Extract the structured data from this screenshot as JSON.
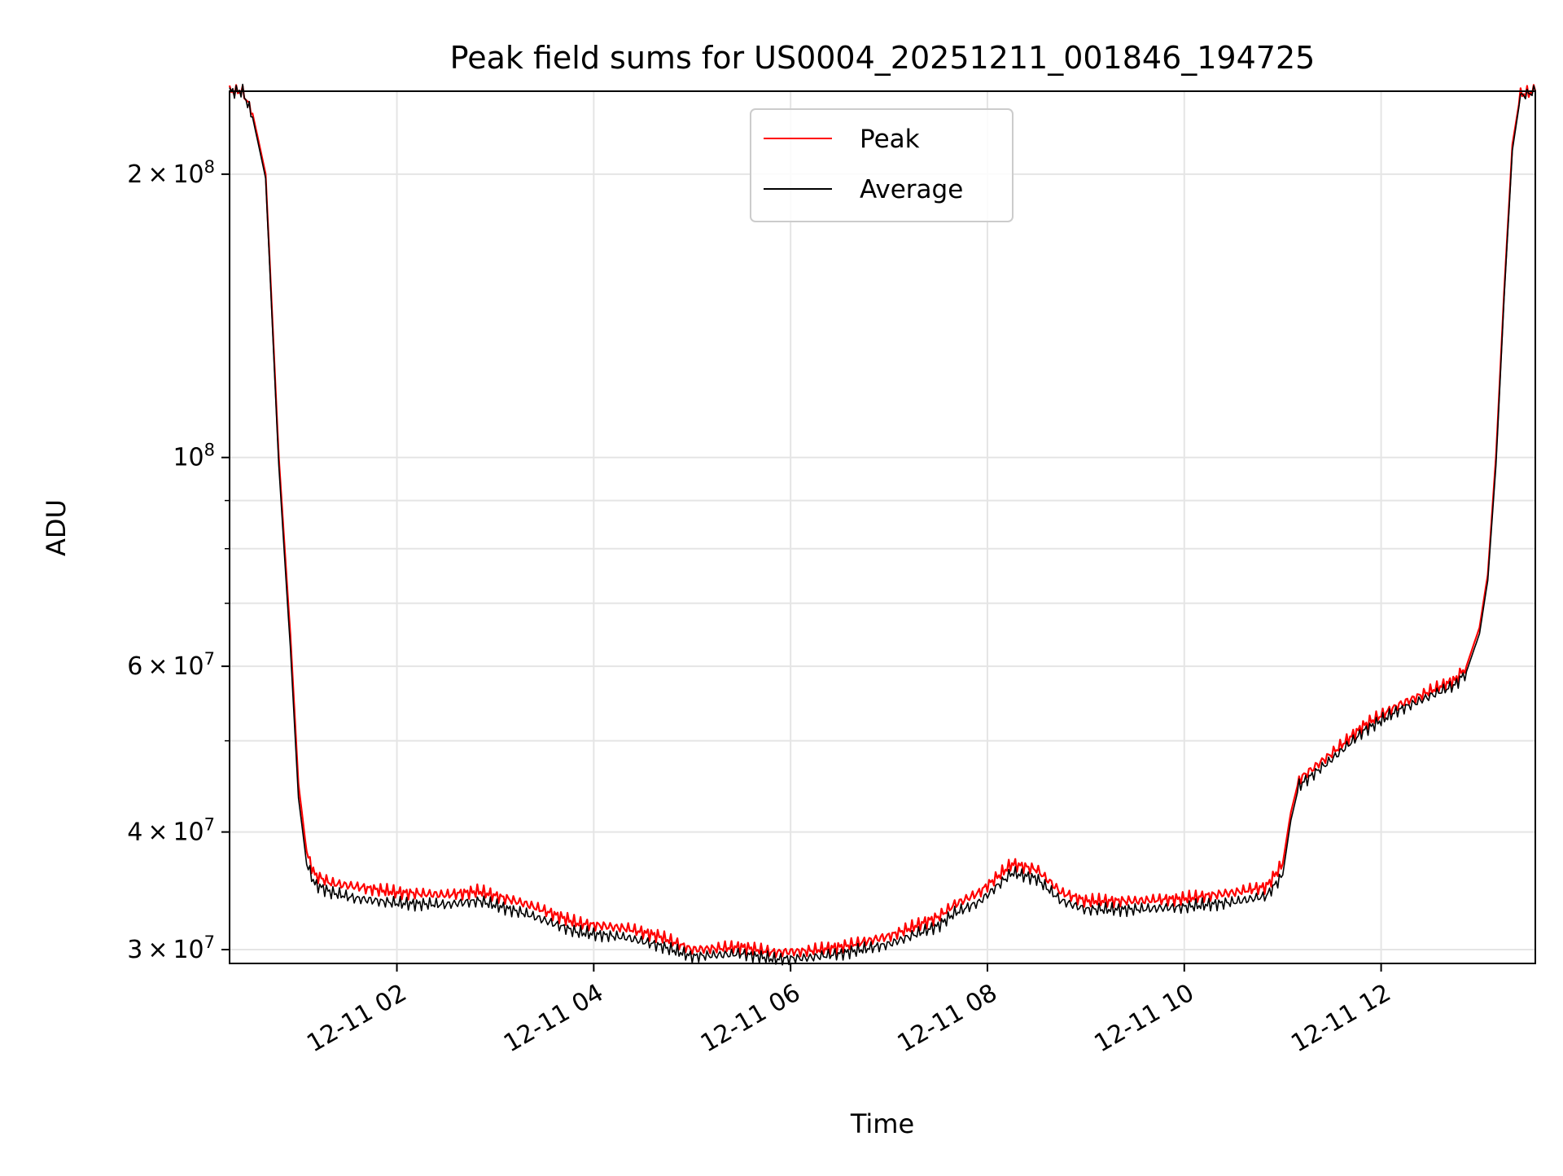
{
  "chart_data": {
    "type": "line",
    "title": "Peak field sums for US0004_20251211_001846_194725",
    "xlabel": "Time",
    "ylabel": "ADU",
    "yscale": "log",
    "x_range": [
      "2025-12-11 00:18",
      "2025-12-11 13:34"
    ],
    "ylim": [
      29000000,
      245000000
    ],
    "grid": true,
    "legend_position": "top-center",
    "x_tick_labels": [
      {
        "label": "12-11 02",
        "x": "2025-12-11 02:00"
      },
      {
        "label": "12-11 04",
        "x": "2025-12-11 04:00"
      },
      {
        "label": "12-11 06",
        "x": "2025-12-11 06:00"
      },
      {
        "label": "12-11 08",
        "x": "2025-12-11 08:00"
      },
      {
        "label": "12-11 10",
        "x": "2025-12-11 10:00"
      },
      {
        "label": "12-11 12",
        "x": "2025-12-11 12:00"
      }
    ],
    "y_tick_labels": [
      {
        "mantissa": "3",
        "exponent": "7",
        "value": 30000000
      },
      {
        "mantissa": "4",
        "exponent": "7",
        "value": 40000000
      },
      {
        "mantissa": "6",
        "exponent": "7",
        "value": 60000000
      },
      {
        "mantissa": "",
        "exponent": "8",
        "value": 100000000
      },
      {
        "mantissa": "2",
        "exponent": "8",
        "value": 200000000
      }
    ],
    "y_minor_ticks": [
      50000000,
      70000000,
      80000000,
      90000000
    ],
    "series": [
      {
        "name": "Peak",
        "color": "#ff0000",
        "x": [
          "2025-12-11 00:18",
          "2025-12-11 00:26",
          "2025-12-11 00:32",
          "2025-12-11 00:40",
          "2025-12-11 00:48",
          "2025-12-11 00:55",
          "2025-12-11 01:00",
          "2025-12-11 01:05",
          "2025-12-11 01:10",
          "2025-12-11 01:20",
          "2025-12-11 01:35",
          "2025-12-11 02:00",
          "2025-12-11 02:30",
          "2025-12-11 02:50",
          "2025-12-11 03:20",
          "2025-12-11 03:50",
          "2025-12-11 04:20",
          "2025-12-11 04:40",
          "2025-12-11 05:00",
          "2025-12-11 05:30",
          "2025-12-11 05:50",
          "2025-12-11 06:10",
          "2025-12-11 06:30",
          "2025-12-11 07:00",
          "2025-12-11 07:30",
          "2025-12-11 07:40",
          "2025-12-11 07:55",
          "2025-12-11 08:15",
          "2025-12-11 08:30",
          "2025-12-11 08:45",
          "2025-12-11 09:00",
          "2025-12-11 09:30",
          "2025-12-11 10:00",
          "2025-12-11 10:30",
          "2025-12-11 10:50",
          "2025-12-11 11:00",
          "2025-12-11 11:05",
          "2025-12-11 11:10",
          "2025-12-11 11:30",
          "2025-12-11 11:50",
          "2025-12-11 12:10",
          "2025-12-11 12:30",
          "2025-12-11 12:45",
          "2025-12-11 12:52",
          "2025-12-11 13:00",
          "2025-12-11 13:05",
          "2025-12-11 13:10",
          "2025-12-11 13:15",
          "2025-12-11 13:20",
          "2025-12-11 13:25",
          "2025-12-11 13:34"
        ],
        "values": [
          245000000,
          245000000,
          232000000,
          200000000,
          100000000,
          65000000,
          45000000,
          38000000,
          36000000,
          35300000,
          35000000,
          34500000,
          34300000,
          34600000,
          33500000,
          32000000,
          31600000,
          31000000,
          30000000,
          30200000,
          29800000,
          29900000,
          30200000,
          31000000,
          32500000,
          33500000,
          34500000,
          37000000,
          36500000,
          34500000,
          33800000,
          33800000,
          34000000,
          34500000,
          35000000,
          37000000,
          42000000,
          45500000,
          48500000,
          52000000,
          54500000,
          56500000,
          58000000,
          60000000,
          66000000,
          75000000,
          100000000,
          150000000,
          215000000,
          243000000,
          245000000
        ]
      },
      {
        "name": "Average",
        "color": "#000000",
        "x": [
          "2025-12-11 00:18",
          "2025-12-11 00:26",
          "2025-12-11 00:32",
          "2025-12-11 00:40",
          "2025-12-11 00:48",
          "2025-12-11 00:55",
          "2025-12-11 01:00",
          "2025-12-11 01:05",
          "2025-12-11 01:10",
          "2025-12-11 01:20",
          "2025-12-11 01:35",
          "2025-12-11 02:00",
          "2025-12-11 02:30",
          "2025-12-11 02:50",
          "2025-12-11 03:20",
          "2025-12-11 03:50",
          "2025-12-11 04:20",
          "2025-12-11 04:40",
          "2025-12-11 05:00",
          "2025-12-11 05:30",
          "2025-12-11 05:50",
          "2025-12-11 06:10",
          "2025-12-11 06:30",
          "2025-12-11 07:00",
          "2025-12-11 07:30",
          "2025-12-11 07:40",
          "2025-12-11 07:55",
          "2025-12-11 08:15",
          "2025-12-11 08:30",
          "2025-12-11 08:45",
          "2025-12-11 09:00",
          "2025-12-11 09:30",
          "2025-12-11 10:00",
          "2025-12-11 10:30",
          "2025-12-11 10:50",
          "2025-12-11 11:00",
          "2025-12-11 11:05",
          "2025-12-11 11:10",
          "2025-12-11 11:30",
          "2025-12-11 11:50",
          "2025-12-11 12:10",
          "2025-12-11 12:30",
          "2025-12-11 12:45",
          "2025-12-11 12:52",
          "2025-12-11 13:00",
          "2025-12-11 13:05",
          "2025-12-11 13:10",
          "2025-12-11 13:15",
          "2025-12-11 13:20",
          "2025-12-11 13:25",
          "2025-12-11 13:34"
        ],
        "values": [
          245000000,
          245000000,
          230000000,
          198000000,
          98000000,
          63000000,
          43500000,
          37000000,
          35200000,
          34500000,
          34000000,
          33600000,
          33500000,
          33800000,
          32700000,
          31300000,
          30900000,
          30300000,
          29500000,
          29700000,
          29300000,
          29400000,
          29700000,
          30400000,
          31800000,
          32800000,
          33700000,
          36200000,
          35700000,
          33800000,
          33100000,
          33100000,
          33300000,
          33700000,
          34200000,
          36000000,
          41200000,
          44800000,
          47800000,
          51300000,
          53800000,
          55800000,
          57300000,
          59200000,
          65000000,
          74000000,
          98000000,
          148000000,
          212000000,
          242000000,
          245000000
        ]
      }
    ]
  }
}
